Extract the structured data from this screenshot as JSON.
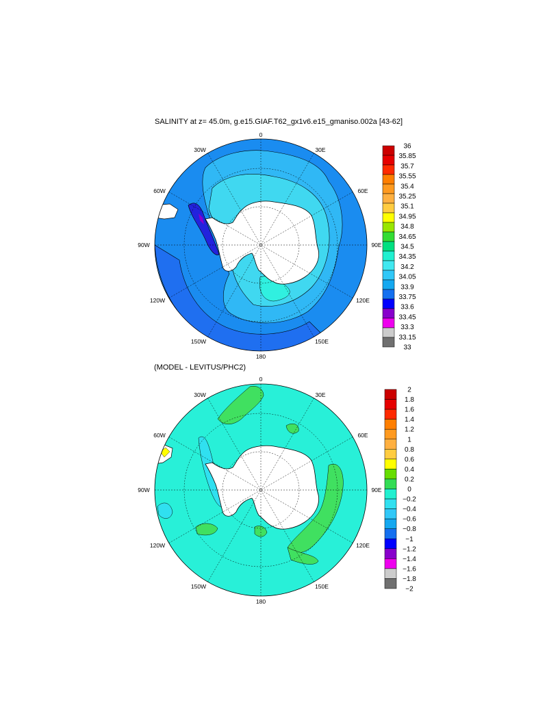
{
  "panels": [
    {
      "title": "SALINITY at z=  45.0m, g.e15.GIAF.T62_gx1v6.e15_gmaniso.002a [43-62]",
      "lon_labels": {
        "top": "0",
        "p30e": "30E",
        "p60e": "60E",
        "p90e": "90E",
        "p120e": "120E",
        "p150e": "150E",
        "bottom": "180",
        "p150w": "150W",
        "p120w": "120W",
        "p90w": "90W",
        "p60w": "60W",
        "p30w": "30W"
      },
      "colorbar": {
        "labels": [
          "36",
          "35.85",
          "35.7",
          "35.55",
          "35.4",
          "35.25",
          "35.1",
          "34.95",
          "34.8",
          "34.65",
          "34.5",
          "34.35",
          "34.2",
          "34.05",
          "33.9",
          "33.75",
          "33.6",
          "33.45",
          "33.3",
          "33.15",
          "33"
        ],
        "colors": [
          "#cc0000",
          "#e60000",
          "#ff2a00",
          "#ff7f00",
          "#ff9a1f",
          "#ffb040",
          "#ffcc40",
          "#ffff00",
          "#99e600",
          "#33dd33",
          "#00e080",
          "#20f0d0",
          "#40e8f0",
          "#30c8f8",
          "#14a8f0",
          "#1470f0",
          "#0000ff",
          "#8800cc",
          "#ee00ee",
          "#cccccc",
          "#707070"
        ]
      },
      "colors": {
        "ocean_main": "#1a8cf0",
        "ocean_mid": "#30b8f5",
        "ocean_inner": "#40d8f0",
        "ocean_band": "#1f6ff0",
        "cyan": "#30f0e0",
        "low": "#2222dd",
        "purple": "#8800cc",
        "land": "#ffffff"
      }
    },
    {
      "title": "(MODEL - LEVITUS/PHC2)",
      "lon_labels": {
        "top": "0",
        "p30e": "30E",
        "p60e": "60E",
        "p90e": "90E",
        "p120e": "120E",
        "p150e": "150E",
        "bottom": "180",
        "p150w": "150W",
        "p120w": "120W",
        "p90w": "90W",
        "p60w": "60W",
        "p30w": "30W"
      },
      "colorbar": {
        "labels": [
          "2",
          "1.8",
          "1.6",
          "1.4",
          "1.2",
          "1",
          "0.8",
          "0.6",
          "0.4",
          "0.2",
          "0",
          "−0.2",
          "−0.4",
          "−0.6",
          "−0.8",
          "−1",
          "−1.2",
          "−1.4",
          "−1.6",
          "−1.8",
          "−2"
        ],
        "colors": [
          "#cc0000",
          "#e60000",
          "#ff2a00",
          "#ff7f00",
          "#ff9a1f",
          "#ffb040",
          "#ffcc40",
          "#ffff00",
          "#66dd00",
          "#33dd55",
          "#20f0d0",
          "#30e0f0",
          "#30c8f8",
          "#14a8f0",
          "#1470f0",
          "#0000ff",
          "#8800cc",
          "#ee00ee",
          "#cccccc",
          "#707070"
        ]
      },
      "colors": {
        "ocean_main": "#28f0d8",
        "green": "#40e060",
        "cyan": "#30e0f0",
        "land": "#ffffff"
      }
    }
  ]
}
